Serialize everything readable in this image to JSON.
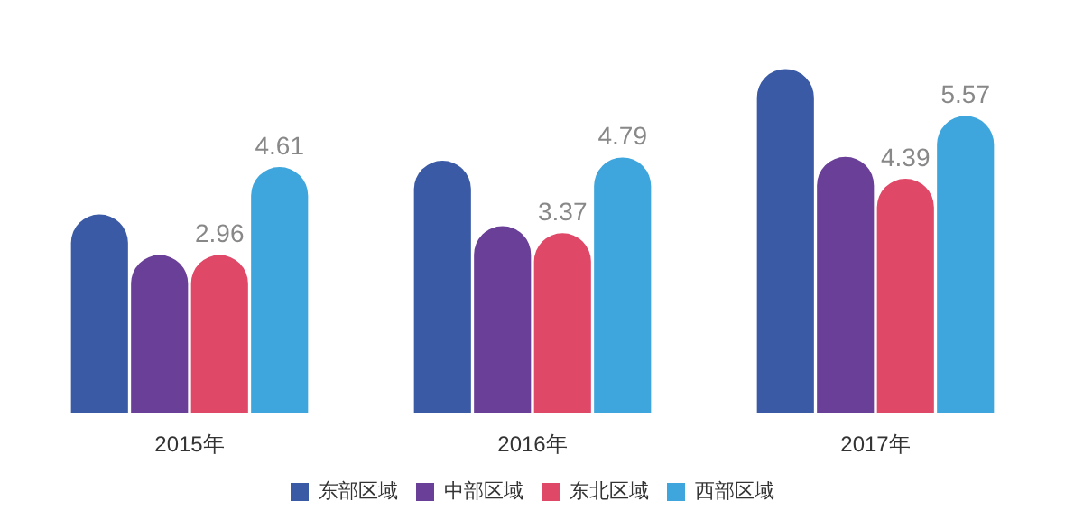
{
  "chart_data": {
    "type": "bar",
    "categories": [
      "2015年",
      "2016年",
      "2017年"
    ],
    "legend": "bottom",
    "series": [
      {
        "name": "东部区域",
        "color": "#3a5aa6",
        "values": [
          3.72,
          4.73,
          6.45
        ]
      },
      {
        "name": "中部区域",
        "color": "#6a3f98",
        "values": [
          2.96,
          3.5,
          4.8
        ]
      },
      {
        "name": "东北区域",
        "color": "#e04868",
        "values": [
          2.96,
          3.37,
          4.39
        ],
        "value_labels": [
          "2.96",
          "3.37",
          "4.39"
        ]
      },
      {
        "name": "西部区域",
        "color": "#3ea6dc",
        "values": [
          4.61,
          4.79,
          5.57
        ],
        "value_labels": [
          "4.61",
          "4.79",
          "5.57"
        ]
      }
    ]
  }
}
